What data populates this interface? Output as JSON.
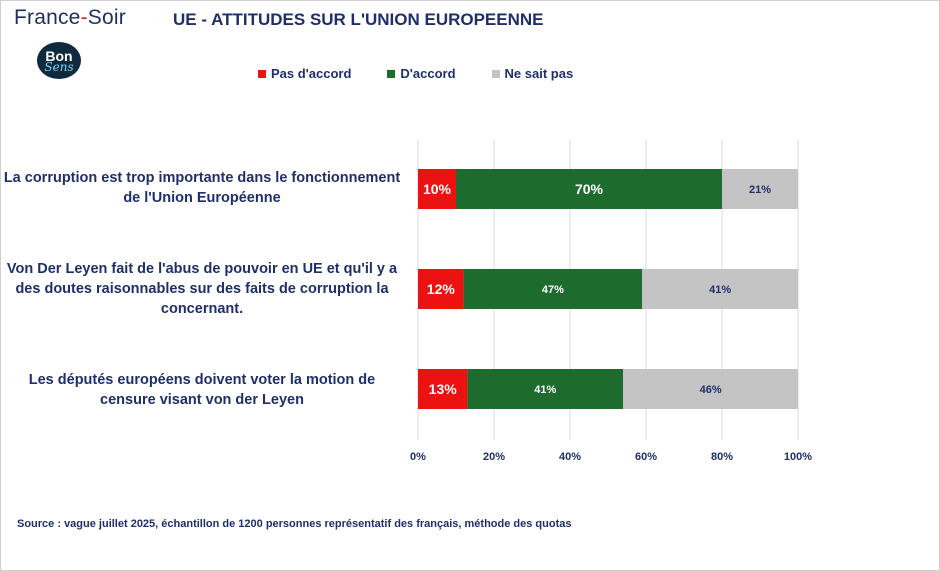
{
  "brand": {
    "name_part1": "France",
    "dash": "-",
    "name_part2": "Soir"
  },
  "logo": {
    "line1": "Bon",
    "line2": "Sens"
  },
  "colors": {
    "pas_daccord": "#ee1111",
    "daccord": "#1e6b2e",
    "ne_sait_pas": "#c4c4c4",
    "text": "#1f2f6b"
  },
  "chart_data": {
    "type": "bar",
    "orientation": "horizontal",
    "stacked": true,
    "title": "UE - ATTITUDES SUR L'UNION EUROPEENNE",
    "categories": [
      "La corruption est trop importante dans le fonctionnement de l'Union Européenne",
      "Von Der Leyen fait de l'abus de pouvoir en UE et qu'il y a des doutes raisonnables sur des faits de corruption la concernant.",
      "Les députés européens doivent voter la motion de censure visant von der Leyen"
    ],
    "series": [
      {
        "name": "Pas d'accord",
        "values": [
          10,
          12,
          13
        ],
        "labels": [
          "10%",
          "12%",
          "13%"
        ]
      },
      {
        "name": "D'accord",
        "values": [
          70,
          47,
          41
        ],
        "labels": [
          "70%",
          "47%",
          "41%"
        ]
      },
      {
        "name": "Ne sait pas",
        "values": [
          21,
          41,
          46
        ],
        "labels": [
          "21%",
          "41%",
          "46%"
        ]
      }
    ],
    "xlim": [
      0,
      100
    ],
    "xticks": [
      "0%",
      "20%",
      "40%",
      "60%",
      "80%",
      "100%"
    ],
    "grid": true,
    "legend_position": "top"
  },
  "source": "Source : vague juillet 2025, échantillon de 1200 personnes représentatif des français, méthode des quotas"
}
